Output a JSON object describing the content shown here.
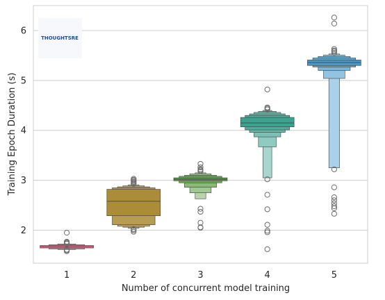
{
  "chart_data": {
    "type": "boxen",
    "categories": [
      "1",
      "2",
      "3",
      "4",
      "5"
    ],
    "xlabel": "Number of concurrent model training",
    "ylabel": "Training Epoch Duration (s)",
    "ylim": [
      1.34,
      6.5
    ],
    "yticks": [
      2,
      3,
      4,
      5,
      6
    ],
    "grid": "horizontal",
    "logo_text": "THOUGHTSRE",
    "colors": [
      "#d9778c",
      "#ab8c38",
      "#5ca145",
      "#39a390",
      "#4599cc"
    ],
    "series": [
      {
        "category": "1",
        "median": 1.67,
        "boxes": [
          [
            1.645,
            1.695
          ],
          [
            1.625,
            1.71
          ],
          [
            1.615,
            1.725
          ]
        ],
        "outliers": [
          1.58,
          1.6,
          1.61,
          1.73,
          1.74,
          1.76,
          1.77,
          1.95
        ]
      },
      {
        "category": "2",
        "median": 2.58,
        "boxes": [
          [
            2.29,
            2.82
          ],
          [
            2.11,
            2.85
          ],
          [
            2.08,
            2.87
          ],
          [
            2.06,
            2.89
          ],
          [
            2.04,
            2.91
          ]
        ],
        "outliers": [
          1.97,
          2.0,
          2.02,
          2.93,
          2.95,
          2.97,
          2.99,
          3.01,
          3.03
        ]
      },
      {
        "category": "3",
        "median": 3.02,
        "boxes": [
          [
            2.99,
            3.05
          ],
          [
            2.95,
            3.08
          ],
          [
            2.86,
            3.1
          ],
          [
            2.75,
            3.13
          ],
          [
            2.63,
            3.15
          ]
        ],
        "outliers": [
          2.05,
          2.06,
          2.15,
          2.37,
          2.43,
          3.18,
          3.2,
          3.22,
          3.26,
          3.33
        ]
      },
      {
        "category": "4",
        "median": 4.15,
        "boxes": [
          [
            4.07,
            4.26
          ],
          [
            4.01,
            4.3
          ],
          [
            3.96,
            4.33
          ],
          [
            3.87,
            4.36
          ],
          [
            3.67,
            4.38
          ],
          [
            3.05,
            4.4
          ]
        ],
        "outliers": [
          1.62,
          1.96,
          1.99,
          2.11,
          2.42,
          2.71,
          3.02,
          4.42,
          4.44,
          4.46,
          4.82
        ]
      },
      {
        "category": "5",
        "median": 5.36,
        "boxes": [
          [
            5.3,
            5.41
          ],
          [
            5.27,
            5.45
          ],
          [
            5.2,
            5.48
          ],
          [
            5.04,
            5.51
          ],
          [
            3.25,
            5.53
          ]
        ],
        "outliers": [
          2.33,
          2.44,
          2.48,
          2.54,
          2.6,
          2.66,
          2.86,
          3.22,
          5.55,
          5.58,
          5.6,
          5.63,
          6.14,
          6.26
        ]
      }
    ]
  }
}
